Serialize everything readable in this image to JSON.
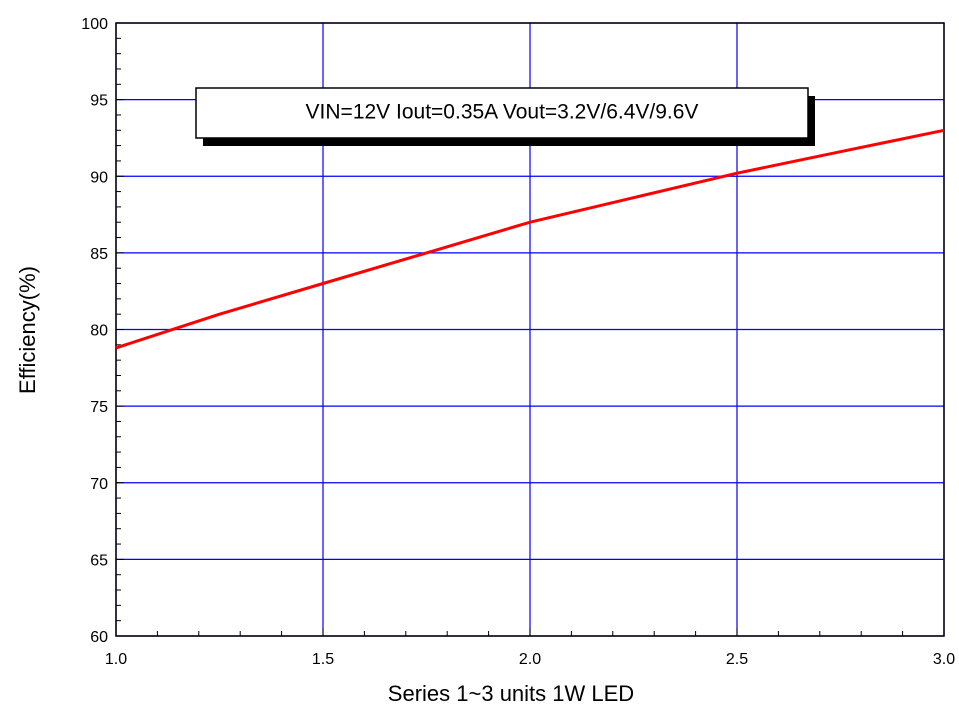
{
  "chart_data": {
    "type": "line",
    "title": "",
    "xlabel": "Series 1~3 units 1W LED",
    "ylabel": "Efficiency(%)",
    "xlim": [
      1.0,
      3.0
    ],
    "ylim": [
      60,
      100
    ],
    "x_ticks": [
      "1.0",
      "1.5",
      "2.0",
      "2.5",
      "3.0"
    ],
    "y_ticks": [
      "60",
      "65",
      "70",
      "75",
      "80",
      "85",
      "90",
      "95",
      "100"
    ],
    "grid": true,
    "annotation": "VIN=12V Iout=0.35A Vout=3.2V/6.4V/9.6V",
    "series": [
      {
        "color": "#ff0000",
        "x": [
          1.0,
          1.25,
          1.5,
          1.75,
          2.0,
          2.25,
          2.5,
          2.75,
          3.0
        ],
        "values": [
          78.8,
          81.0,
          83.0,
          85.0,
          87.0,
          88.6,
          90.2,
          91.6,
          93.0
        ]
      }
    ],
    "colors": {
      "grid": "#0000ff",
      "axis": "#000000",
      "background": "#ffffff"
    }
  }
}
